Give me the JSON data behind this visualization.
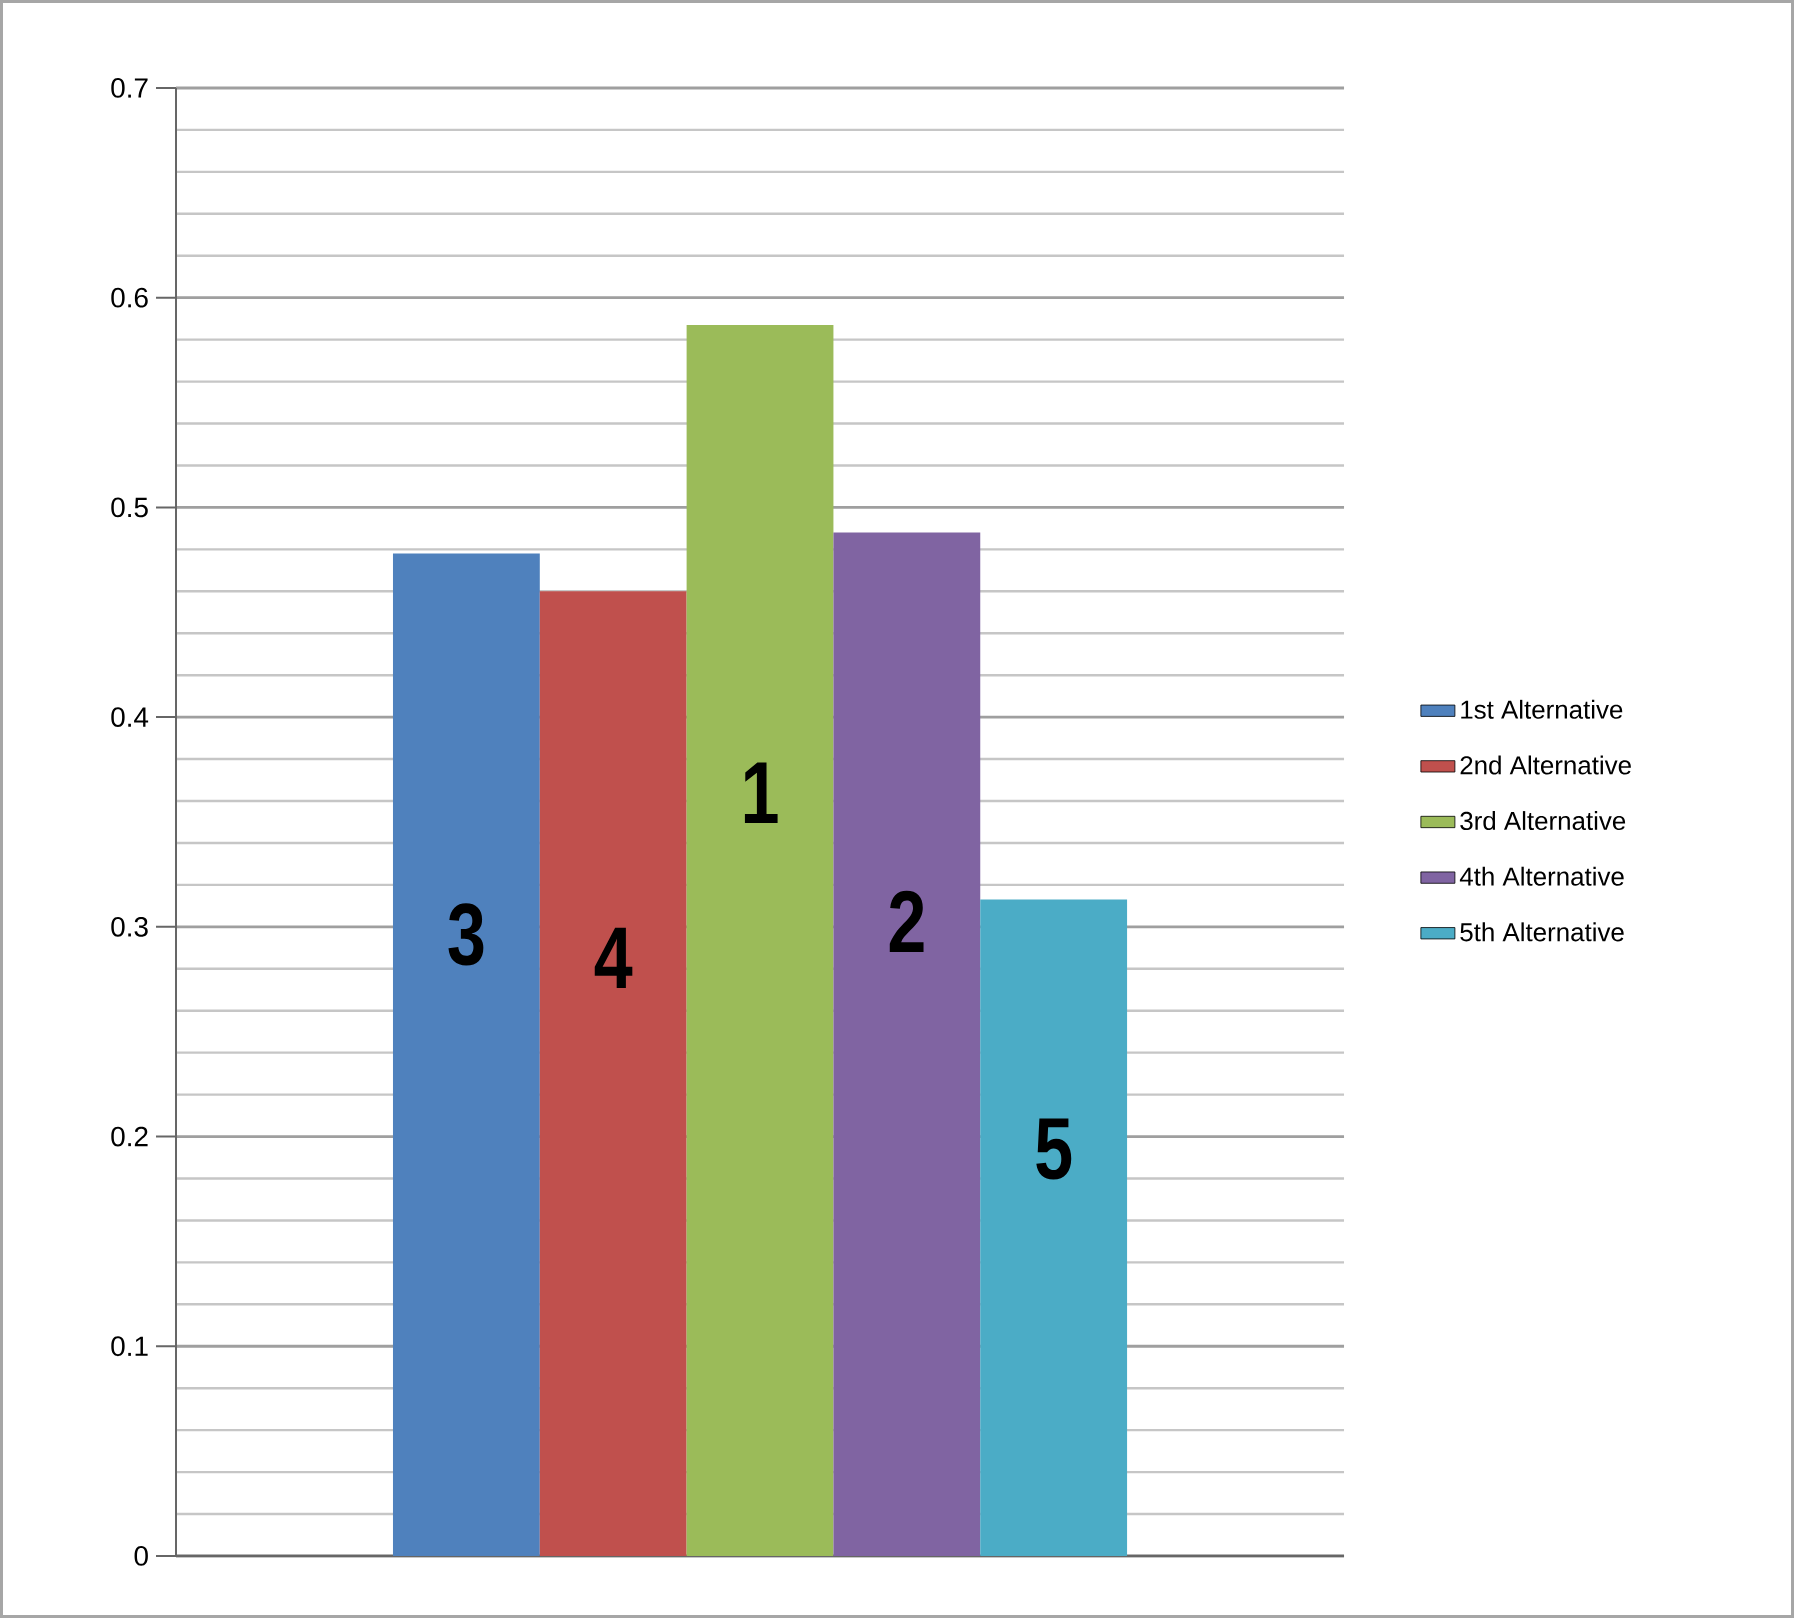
{
  "chart_data": {
    "type": "bar",
    "categories": [
      null
    ],
    "series": [
      {
        "name": "1st Alternative",
        "color": "#4f81bd",
        "values": [
          0.478
        ]
      },
      {
        "name": "2nd Alternative",
        "color": "#c0504d",
        "values": [
          0.46
        ]
      },
      {
        "name": "3rd Alternative",
        "color": "#9bbb59",
        "values": [
          0.587
        ]
      },
      {
        "name": "4th Alternative",
        "color": "#8064a2",
        "values": [
          0.488
        ]
      },
      {
        "name": "5th Alternative",
        "color": "#4bacc6",
        "values": [
          0.313
        ]
      }
    ],
    "annotations": [
      "3",
      "4",
      "1",
      "2",
      "5"
    ],
    "ylim": [
      0,
      0.7
    ],
    "yticks": [
      0,
      0.1,
      0.2,
      0.3,
      0.4,
      0.5,
      0.6,
      0.7
    ],
    "grid": "y",
    "legend": "right"
  }
}
